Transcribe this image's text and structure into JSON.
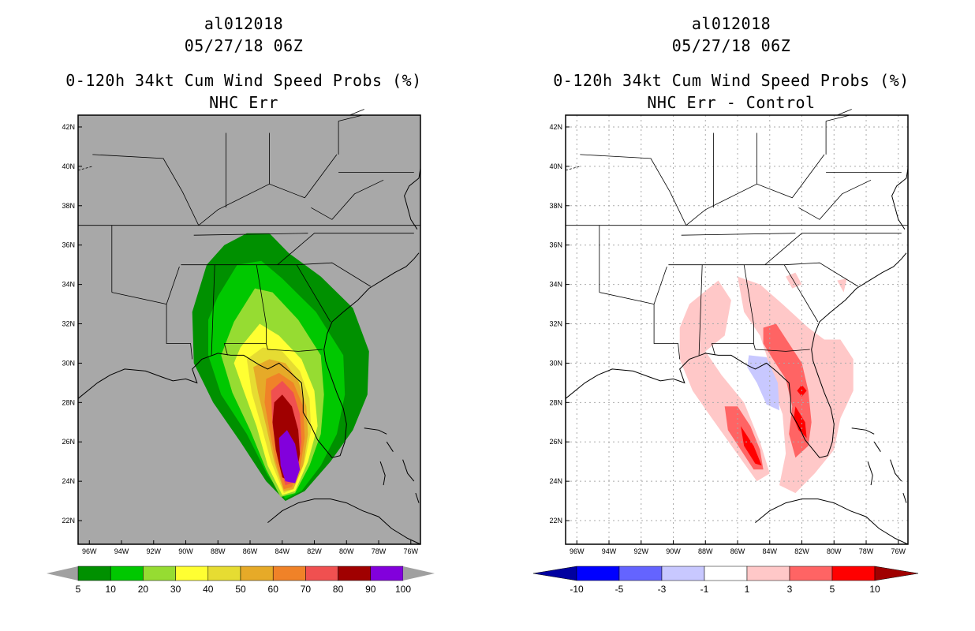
{
  "panels": [
    {
      "storm_id": "al012018",
      "datetime": "05/27/18 06Z",
      "product": "0-120h 34kt Cum Wind Speed Probs (%)",
      "subtitle": "NHC Err",
      "colorbar": {
        "labels": [
          "5",
          "10",
          "20",
          "30",
          "40",
          "50",
          "60",
          "70",
          "80",
          "90",
          "100"
        ],
        "colors": [
          "#009000",
          "#00c800",
          "#96dc32",
          "#ffff32",
          "#e6dc32",
          "#e6aa28",
          "#f08228",
          "#f05050",
          "#a00000",
          "#8200dc"
        ],
        "end_color": "#a0a0a0"
      }
    },
    {
      "storm_id": "al012018",
      "datetime": "05/27/18 06Z",
      "product": "0-120h 34kt Cum Wind Speed Probs (%)",
      "subtitle": "NHC Err - Control",
      "colorbar": {
        "labels": [
          "-10",
          "-5",
          "-3",
          "-1",
          "1",
          "3",
          "5",
          "10"
        ],
        "colors": [
          "#0000a0",
          "#0000ff",
          "#6464ff",
          "#c8c8ff",
          "#ffffff",
          "#ffc8c8",
          "#ff6464",
          "#ff0000",
          "#a00000"
        ]
      }
    }
  ],
  "map": {
    "lat_labels": [
      "42N",
      "40N",
      "38N",
      "36N",
      "34N",
      "32N",
      "30N",
      "28N",
      "26N",
      "24N",
      "22N"
    ],
    "lon_labels": [
      "96W",
      "94W",
      "92W",
      "90W",
      "88W",
      "86W",
      "84W",
      "82W",
      "80W",
      "78W",
      "76W"
    ]
  }
}
